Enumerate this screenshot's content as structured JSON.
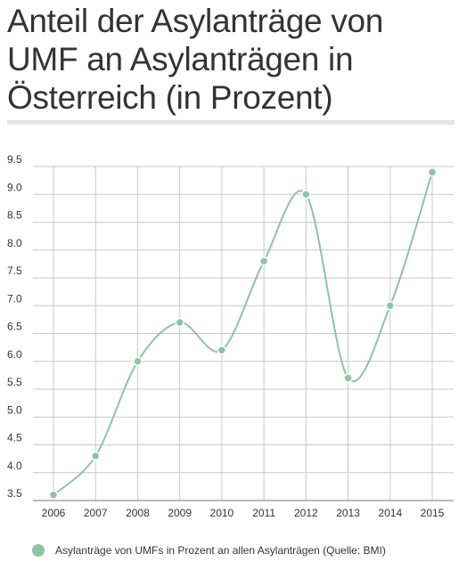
{
  "title": "Anteil der Asylanträge von UMF an Asylanträgen in Österreich (in Prozent)",
  "legend": {
    "label": "Asylanträge von UMFs in Prozent an allen Asylanträgen (Quelle: BMI)"
  },
  "colors": {
    "series": "#8dc4a4",
    "grid": "#c8c8c8",
    "title_rule": "#e4e4e4"
  },
  "chart_data": {
    "type": "line",
    "title": "Anteil der Asylanträge von UMF an Asylanträgen in Österreich (in Prozent)",
    "xlabel": "",
    "ylabel": "",
    "x": [
      "2006",
      "2007",
      "2008",
      "2009",
      "2010",
      "2011",
      "2012",
      "2013",
      "2014",
      "2015"
    ],
    "series": [
      {
        "name": "Asylanträge von UMFs in Prozent an allen Asylanträgen (Quelle: BMI)",
        "values": [
          3.6,
          4.3,
          6.0,
          6.7,
          6.2,
          7.8,
          9.0,
          5.7,
          7.0,
          9.4
        ]
      }
    ],
    "ylim": [
      3.5,
      9.5
    ],
    "yticks": [
      "3.5",
      "4.0",
      "4.5",
      "5.0",
      "5.5",
      "6.0",
      "6.5",
      "7.0",
      "7.5",
      "8.0",
      "8.5",
      "9.0",
      "9.5"
    ],
    "grid": true,
    "curve": "smooth",
    "legend_position": "bottom"
  }
}
